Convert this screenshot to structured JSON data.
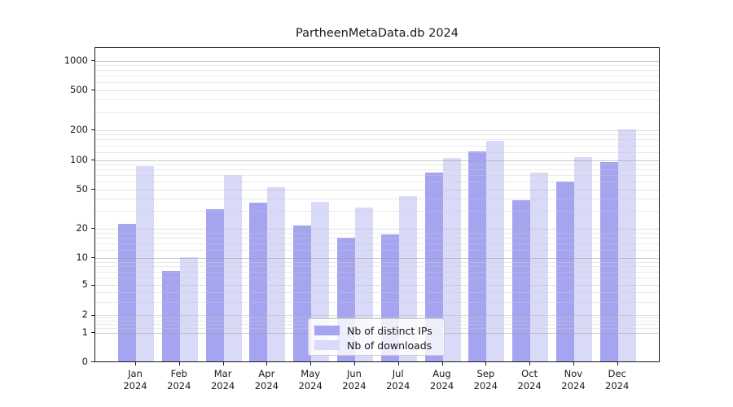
{
  "title": "PartheenMetaData.db 2024",
  "chart_data": {
    "type": "bar",
    "categories": [
      "Jan 2024",
      "Feb 2024",
      "Mar 2024",
      "Apr 2024",
      "May 2024",
      "Jun 2024",
      "Jul 2024",
      "Aug 2024",
      "Sep 2024",
      "Oct 2024",
      "Nov 2024",
      "Dec 2024"
    ],
    "month_names": [
      "Jan",
      "Feb",
      "Mar",
      "Apr",
      "May",
      "Jun",
      "Jul",
      "Aug",
      "Sep",
      "Oct",
      "Nov",
      "Dec"
    ],
    "year_label": "2024",
    "series": [
      {
        "name": "Nb of distinct IPs",
        "color": "#a4a4f0",
        "values": [
          22,
          7,
          31,
          36,
          21,
          16,
          17,
          74,
          120,
          38,
          60,
          94
        ]
      },
      {
        "name": "Nb of downloads",
        "color": "#d9d9f8",
        "values": [
          85,
          10,
          70,
          52,
          37,
          32,
          42,
          103,
          155,
          74,
          106,
          200
        ]
      }
    ],
    "title": "PartheenMetaData.db 2024",
    "xlabel": "",
    "ylabel": "",
    "yscale": "symlog-like",
    "ylim": [
      0,
      1500
    ],
    "yticks": [
      0,
      1,
      2,
      5,
      10,
      20,
      50,
      100,
      200,
      500,
      1000
    ],
    "ytick_labels": [
      "0",
      "1",
      "2",
      "5",
      "10",
      "20",
      "50",
      "100",
      "200",
      "500",
      "1000"
    ],
    "minor_ytick_values": [
      1.2,
      1.4,
      1.6,
      1.8,
      3,
      4,
      6,
      7,
      8,
      9,
      12,
      14,
      16,
      18,
      30,
      40,
      60,
      70,
      80,
      90,
      120,
      140,
      160,
      180,
      300,
      400,
      600,
      700,
      800,
      900
    ],
    "grid": true,
    "legend_position": "lower center"
  },
  "colors": {
    "background": "#ffffff",
    "axis": "#1a1a1a",
    "grid_major": "#c8c8c8",
    "grid_minor": "#ececec",
    "bar_ips": "#a4a4f0",
    "bar_downloads": "#d9d9f8"
  }
}
